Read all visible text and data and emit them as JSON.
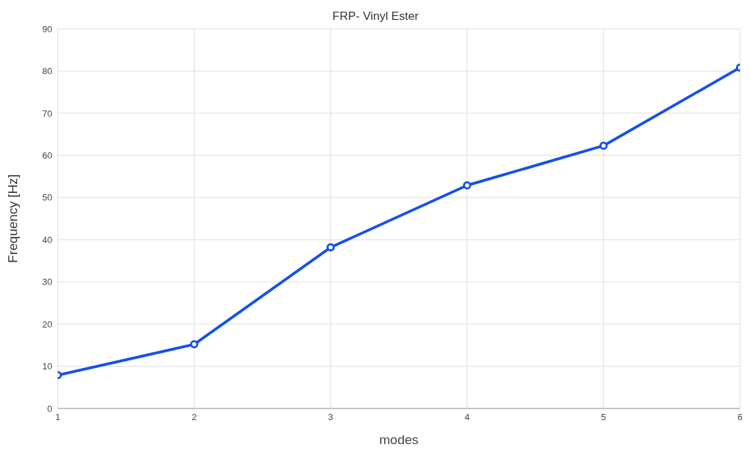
{
  "chart_data": {
    "type": "line",
    "title": "FRP- Vinyl Ester",
    "xlabel": "modes",
    "ylabel": "Frequency [Hz]",
    "x": [
      1,
      2,
      3,
      4,
      5,
      6
    ],
    "series": [
      {
        "color": "#1450f0",
        "values": [
          7.9,
          15.2,
          38.2,
          52.9,
          62.3,
          80.8
        ]
      }
    ],
    "xlim": [
      1,
      6
    ],
    "xticks": [
      1,
      2,
      3,
      4,
      5,
      6
    ],
    "ylim": [
      0,
      90
    ],
    "yticks": [
      0,
      10,
      20,
      30,
      40,
      50,
      60,
      70,
      80,
      90
    ],
    "grid": true,
    "marker": "circle",
    "line_style": "solid",
    "legend": false
  }
}
